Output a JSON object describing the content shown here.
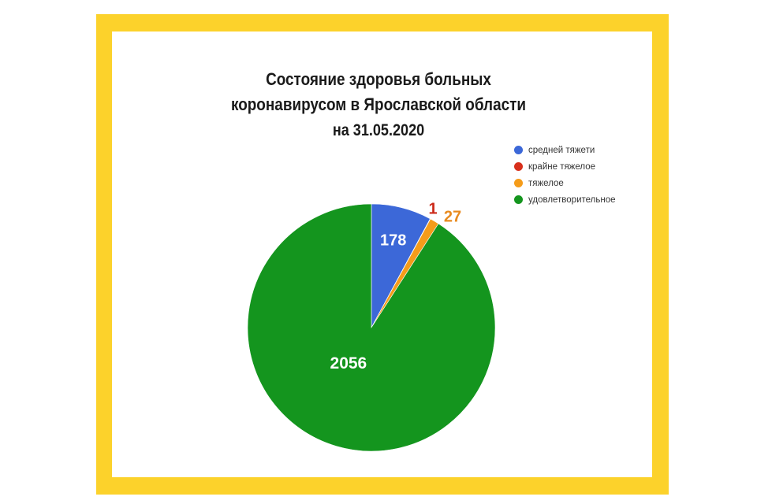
{
  "chart_data": {
    "type": "pie",
    "title_lines": [
      "Состояние здоровья больных",
      "коронавирусом в Ярославской области",
      "на  31.05.2020"
    ],
    "slices": [
      {
        "name": "средней тяжети",
        "value": 178,
        "color": "#3c68d8",
        "label": "178",
        "label_color": "#ffffff"
      },
      {
        "name": "крайне тяжелое",
        "value": 1,
        "color": "#d8301c",
        "label": "1",
        "label_color": "#cc2a1a"
      },
      {
        "name": "тяжелое",
        "value": 27,
        "color": "#f59c1a",
        "label": "27",
        "label_color": "#e88a1e"
      },
      {
        "name": "удовлетворительное",
        "value": 2056,
        "color": "#14951e",
        "label": "2056",
        "label_color": "#ffffff"
      }
    ],
    "legend": [
      {
        "name": "средней тяжети",
        "color": "#3c68d8"
      },
      {
        "name": "крайне тяжелое",
        "color": "#d8301c"
      },
      {
        "name": "тяжелое",
        "color": "#f59c1a"
      },
      {
        "name": "удовлетворительное",
        "color": "#14951e"
      }
    ],
    "legend_position": "top-right"
  }
}
